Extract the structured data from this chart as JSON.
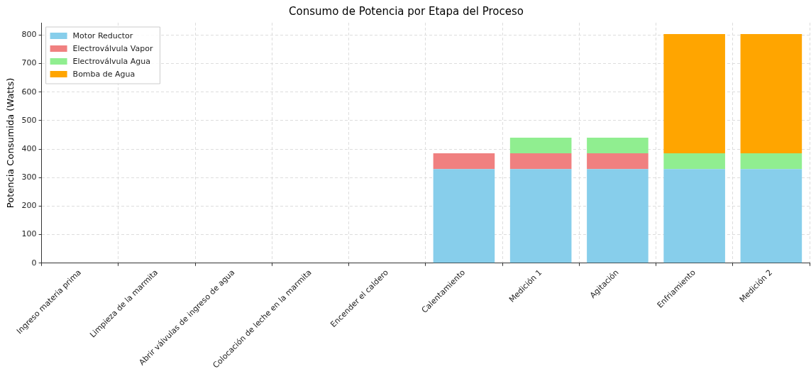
{
  "chart_data": {
    "type": "bar",
    "title": "Consumo de Potencia por Etapa del Proceso",
    "ylabel": "Potencia Consumida (Watts)",
    "categories": [
      "Ingreso materia prima",
      "Limpieza de la marmita",
      "Abrir válvulas de ingreso de agua",
      "Colocación de leche en la marmita",
      "Encender el caldero",
      "Calentamiento",
      "Medición 1",
      "Agitación",
      "Enfriamiento",
      "Medición 2"
    ],
    "series": [
      {
        "name": "Motor Reductor",
        "color": "#87ceeb",
        "values": [
          0,
          0,
          0,
          0,
          0,
          330,
          330,
          330,
          330,
          330
        ]
      },
      {
        "name": "Electroválvula Vapor",
        "color": "#f08080",
        "values": [
          0,
          0,
          0,
          0,
          0,
          55,
          55,
          55,
          0,
          0
        ]
      },
      {
        "name": "Electroválvula Agua",
        "color": "#90ee90",
        "values": [
          0,
          0,
          0,
          0,
          0,
          0,
          55,
          55,
          55,
          55
        ]
      },
      {
        "name": "Bomba de Agua",
        "color": "#ffa500",
        "values": [
          0,
          0,
          0,
          0,
          0,
          0,
          0,
          0,
          418,
          418
        ]
      }
    ],
    "stacked": true,
    "ylim": [
      0,
      843
    ],
    "yticks": [
      0,
      100,
      200,
      300,
      400,
      500,
      600,
      700,
      800
    ],
    "grid": true,
    "legend": "top left"
  }
}
